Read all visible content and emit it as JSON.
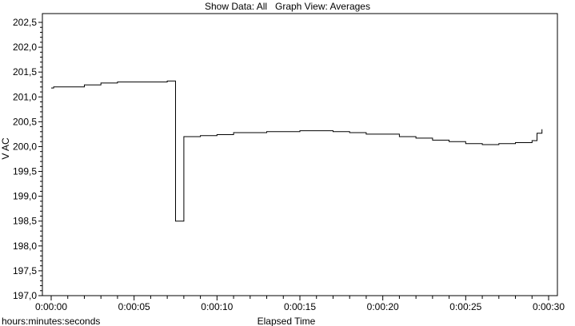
{
  "header": {
    "show_data": "Show Data: All",
    "graph_view": "Graph View: Averages"
  },
  "chart_data": {
    "type": "line",
    "step": true,
    "ylabel": "V AC",
    "xlabel": "Elapsed Time",
    "xunit_label": "hours:minutes:seconds",
    "xlim": [
      0,
      30
    ],
    "ylim": [
      197.0,
      202.6
    ],
    "x_tick_labels": [
      "0:00:00",
      "0:00:05",
      "0:00:10",
      "0:00:15",
      "0:00:20",
      "0:00:25",
      "0:00:30"
    ],
    "x_tick_values": [
      0,
      5,
      10,
      15,
      20,
      25,
      30
    ],
    "y_tick_labels": [
      "197,0",
      "197,5",
      "198,0",
      "198,5",
      "199,0",
      "199,5",
      "200,0",
      "200,5",
      "201,0",
      "201,5",
      "202,0",
      "202,5"
    ],
    "y_tick_values": [
      197.0,
      197.5,
      198.0,
      198.5,
      199.0,
      199.5,
      200.0,
      200.5,
      201.0,
      201.5,
      202.0,
      202.5
    ],
    "grid": false,
    "series": [
      {
        "values_x": [
          0,
          0.15,
          0.2,
          1,
          2,
          3,
          4,
          5,
          6,
          7,
          7.5,
          8,
          9,
          10,
          11,
          12,
          13,
          14,
          15,
          16,
          17,
          18,
          19,
          20,
          21,
          22,
          23,
          24,
          25,
          26,
          27,
          28,
          29,
          29.3
        ],
        "values_y": [
          201.18,
          201.2,
          201.2,
          201.2,
          201.24,
          201.28,
          201.3,
          201.3,
          201.3,
          201.32,
          198.5,
          200.2,
          200.22,
          200.24,
          200.28,
          200.28,
          200.3,
          200.3,
          200.32,
          200.32,
          200.3,
          200.28,
          200.25,
          200.25,
          200.2,
          200.17,
          200.13,
          200.1,
          200.06,
          200.04,
          200.06,
          200.08,
          200.12,
          200.27
        ],
        "end_x": 29.6,
        "end_y": 200.35,
        "color": "#000000"
      }
    ]
  }
}
